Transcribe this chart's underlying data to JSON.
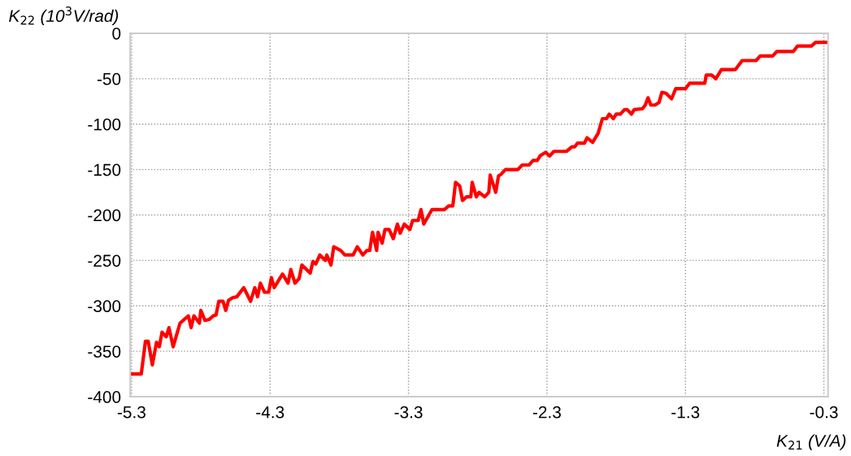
{
  "chart_data": {
    "type": "line",
    "xlabel": "K$_{21}$ (V/A)",
    "ylabel": "K$_{22}$ (10$^{3}$V/rad)",
    "xlim": [
      -5.31,
      -0.27
    ],
    "ylim": [
      -400,
      0
    ],
    "xticks": [
      -5.3,
      -4.3,
      -3.3,
      -2.3,
      -1.3,
      -0.3
    ],
    "yticks": [
      0,
      -50,
      -100,
      -150,
      -200,
      -250,
      -300,
      -350,
      -400
    ],
    "grid": true,
    "marker": "none",
    "line_style": "solid",
    "series": [
      {
        "color": "#ff0000",
        "x": [
          -5.3,
          -5.23,
          -5.2,
          -5.18,
          -5.15,
          -5.12,
          -5.1,
          -5.08,
          -5.05,
          -5.03,
          -5.0,
          -4.95,
          -4.89,
          -4.87,
          -4.85,
          -4.81,
          -4.8,
          -4.77,
          -4.74,
          -4.71,
          -4.69,
          -4.67,
          -4.64,
          -4.62,
          -4.6,
          -4.57,
          -4.54,
          -4.49,
          -4.44,
          -4.41,
          -4.39,
          -4.37,
          -4.34,
          -4.31,
          -4.29,
          -4.27,
          -4.21,
          -4.17,
          -4.15,
          -4.12,
          -4.09,
          -4.07,
          -4.01,
          -3.99,
          -3.97,
          -3.94,
          -3.9,
          -3.89,
          -3.86,
          -3.84,
          -3.79,
          -3.76,
          -3.7,
          -3.67,
          -3.63,
          -3.6,
          -3.58,
          -3.56,
          -3.53,
          -3.52,
          -3.49,
          -3.47,
          -3.44,
          -3.41,
          -3.38,
          -3.36,
          -3.33,
          -3.29,
          -3.27,
          -3.23,
          -3.21,
          -3.19,
          -3.13,
          -3.04,
          -3.01,
          -2.98,
          -2.96,
          -2.93,
          -2.91,
          -2.88,
          -2.85,
          -2.84,
          -2.81,
          -2.79,
          -2.75,
          -2.72,
          -2.71,
          -2.67,
          -2.65,
          -2.63,
          -2.6,
          -2.51,
          -2.48,
          -2.43,
          -2.4,
          -2.37,
          -2.35,
          -2.31,
          -2.28,
          -2.25,
          -2.16,
          -2.12,
          -2.1,
          -2.08,
          -2.03,
          -2.01,
          -1.97,
          -1.93,
          -1.9,
          -1.87,
          -1.85,
          -1.82,
          -1.8,
          -1.77,
          -1.74,
          -1.72,
          -1.69,
          -1.67,
          -1.61,
          -1.59,
          -1.57,
          -1.55,
          -1.52,
          -1.49,
          -1.47,
          -1.44,
          -1.4,
          -1.37,
          -1.3,
          -1.27,
          -1.16,
          -1.15,
          -1.11,
          -1.08,
          -1.04,
          -0.94,
          -0.89,
          -0.79,
          -0.76,
          -0.67,
          -0.64,
          -0.52,
          -0.49,
          -0.39,
          -0.36,
          -0.28
        ],
        "values": [
          -375,
          -375,
          -339,
          -339,
          -365,
          -340,
          -345,
          -329,
          -334,
          -324,
          -345,
          -319,
          -311,
          -324,
          -311,
          -319,
          -305,
          -316,
          -315,
          -311,
          -310,
          -295,
          -295,
          -305,
          -294,
          -291,
          -290,
          -280,
          -295,
          -280,
          -290,
          -275,
          -285,
          -285,
          -269,
          -280,
          -265,
          -275,
          -260,
          -275,
          -270,
          -255,
          -264,
          -251,
          -254,
          -244,
          -250,
          -244,
          -255,
          -235,
          -239,
          -244,
          -244,
          -235,
          -244,
          -239,
          -239,
          -219,
          -239,
          -219,
          -231,
          -216,
          -216,
          -226,
          -210,
          -220,
          -210,
          -216,
          -206,
          -206,
          -194,
          -210,
          -194,
          -194,
          -190,
          -190,
          -164,
          -168,
          -184,
          -180,
          -180,
          -164,
          -180,
          -175,
          -180,
          -175,
          -156,
          -175,
          -157,
          -155,
          -150,
          -150,
          -145,
          -145,
          -140,
          -140,
          -135,
          -131,
          -135,
          -130,
          -130,
          -125,
          -125,
          -121,
          -121,
          -115,
          -120,
          -110,
          -94,
          -94,
          -89,
          -94,
          -89,
          -89,
          -84,
          -84,
          -89,
          -84,
          -83,
          -79,
          -71,
          -79,
          -79,
          -76,
          -65,
          -66,
          -72,
          -61,
          -61,
          -55,
          -55,
          -46,
          -46,
          -50,
          -40,
          -40,
          -30,
          -30,
          -25,
          -25,
          -20,
          -20,
          -14,
          -14,
          -10,
          -10
        ]
      }
    ]
  }
}
